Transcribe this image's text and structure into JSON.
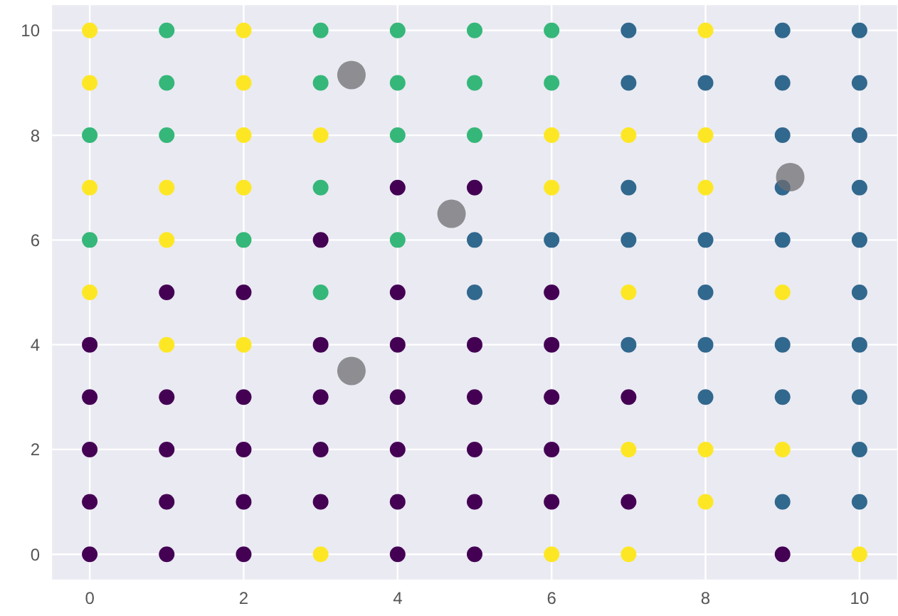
{
  "chart_data": {
    "type": "scatter",
    "xlim": [
      -0.5,
      10.5
    ],
    "ylim": [
      -0.5,
      10.5
    ],
    "xticks": [
      0,
      2,
      4,
      6,
      8,
      10
    ],
    "yticks": [
      0,
      2,
      4,
      6,
      8,
      10
    ],
    "grid": true,
    "marker": "circle",
    "series": [
      {
        "color": "#fde725",
        "x": [
          0,
          2,
          8,
          0,
          2,
          2,
          3,
          6,
          7,
          8,
          0,
          1,
          2,
          6,
          8,
          1,
          0,
          7,
          9,
          1,
          2,
          7,
          8,
          9,
          8,
          3,
          6,
          7,
          10
        ],
        "values": [
          10,
          10,
          10,
          9,
          9,
          8,
          8,
          8,
          8,
          8,
          7,
          7,
          7,
          7,
          7,
          6,
          5,
          5,
          5,
          4,
          4,
          2,
          2,
          2,
          1,
          0,
          0,
          0,
          0
        ]
      },
      {
        "color": "#35b779",
        "x": [
          1,
          3,
          4,
          5,
          6,
          1,
          3,
          4,
          5,
          6,
          0,
          1,
          4,
          5,
          3,
          0,
          2,
          4,
          3
        ],
        "values": [
          10,
          10,
          10,
          10,
          10,
          9,
          9,
          9,
          9,
          9,
          8,
          8,
          8,
          8,
          7,
          6,
          6,
          6,
          5
        ]
      },
      {
        "color": "#31688e",
        "x": [
          7,
          9,
          10,
          7,
          8,
          9,
          10,
          9,
          10,
          7,
          9,
          10,
          5,
          6,
          7,
          8,
          9,
          10,
          5,
          8,
          10,
          7,
          8,
          9,
          10,
          8,
          9,
          10,
          10,
          9,
          10
        ],
        "values": [
          10,
          10,
          10,
          9,
          9,
          9,
          9,
          8,
          8,
          7,
          7,
          7,
          6,
          6,
          6,
          6,
          6,
          6,
          5,
          5,
          5,
          4,
          4,
          4,
          4,
          3,
          3,
          3,
          2,
          1,
          1
        ]
      },
      {
        "color": "#440154",
        "x": [
          4,
          5,
          3,
          1,
          2,
          4,
          6,
          0,
          3,
          4,
          5,
          6,
          0,
          1,
          2,
          3,
          4,
          5,
          6,
          7,
          0,
          1,
          2,
          3,
          4,
          5,
          6,
          0,
          1,
          2,
          3,
          4,
          5,
          6,
          7,
          0,
          1,
          2,
          4,
          5,
          9
        ],
        "values": [
          7,
          7,
          6,
          5,
          5,
          5,
          5,
          4,
          4,
          4,
          4,
          4,
          3,
          3,
          3,
          3,
          3,
          3,
          3,
          3,
          2,
          2,
          2,
          2,
          2,
          2,
          2,
          1,
          1,
          1,
          1,
          1,
          1,
          1,
          1,
          0,
          0,
          0,
          0,
          0,
          0
        ]
      },
      {
        "color": "#6e6e72",
        "x": [
          3.4,
          4.7,
          9.1,
          3.4
        ],
        "values": [
          9.15,
          6.5,
          7.2,
          3.5
        ]
      }
    ]
  }
}
